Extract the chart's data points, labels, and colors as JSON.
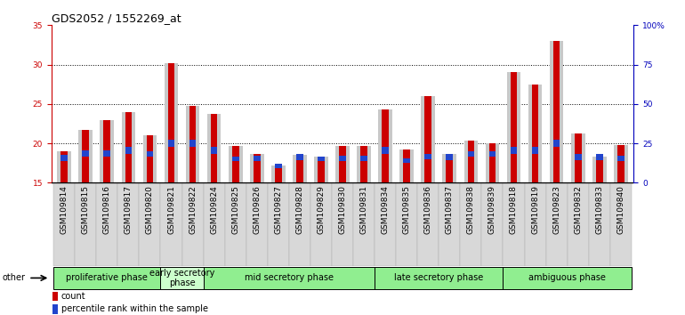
{
  "title": "GDS2052 / 1552269_at",
  "samples": [
    "GSM109814",
    "GSM109815",
    "GSM109816",
    "GSM109817",
    "GSM109820",
    "GSM109821",
    "GSM109822",
    "GSM109824",
    "GSM109825",
    "GSM109826",
    "GSM109827",
    "GSM109828",
    "GSM109829",
    "GSM109830",
    "GSM109831",
    "GSM109834",
    "GSM109835",
    "GSM109836",
    "GSM109837",
    "GSM109838",
    "GSM109839",
    "GSM109818",
    "GSM109819",
    "GSM109823",
    "GSM109832",
    "GSM109833",
    "GSM109840"
  ],
  "count_values": [
    19.0,
    21.7,
    23.0,
    24.0,
    21.0,
    30.2,
    24.7,
    23.7,
    19.7,
    18.7,
    17.2,
    18.5,
    18.3,
    19.7,
    19.7,
    24.3,
    19.2,
    26.0,
    18.7,
    20.3,
    20.0,
    29.0,
    27.5,
    33.0,
    21.2,
    18.3,
    19.8
  ],
  "percentile_bottom": [
    17.7,
    18.3,
    18.3,
    18.7,
    18.3,
    19.5,
    19.5,
    18.7,
    17.7,
    17.7,
    16.9,
    17.9,
    17.7,
    17.7,
    17.7,
    18.7,
    17.5,
    18.0,
    17.9,
    18.3,
    18.3,
    18.7,
    18.7,
    19.5,
    17.9,
    17.9,
    17.7
  ],
  "percentile_height": [
    0.8,
    0.8,
    0.8,
    0.8,
    0.7,
    1.0,
    1.0,
    0.8,
    0.6,
    0.7,
    0.5,
    0.7,
    0.6,
    0.7,
    0.7,
    0.8,
    0.6,
    0.7,
    0.7,
    0.7,
    0.7,
    0.8,
    0.8,
    1.0,
    0.7,
    0.7,
    0.7
  ],
  "ylim_left": [
    15,
    35
  ],
  "ylim_right": [
    0,
    100
  ],
  "yticks_left": [
    15,
    20,
    25,
    30,
    35
  ],
  "yticks_right": [
    0,
    25,
    50,
    75,
    100
  ],
  "ytick_labels_right": [
    "0",
    "25",
    "50",
    "75",
    "100%"
  ],
  "count_color": "#cc0000",
  "percentile_color": "#2244cc",
  "bar_bg_color": "#c8c8c8",
  "groups": [
    {
      "label": "proliferative phase",
      "start": 0,
      "end": 4,
      "color": "#90EE90"
    },
    {
      "label": "early secretory\nphase",
      "start": 5,
      "end": 6,
      "color": "#ccffcc"
    },
    {
      "label": "mid secretory phase",
      "start": 7,
      "end": 14,
      "color": "#90EE90"
    },
    {
      "label": "late secretory phase",
      "start": 15,
      "end": 20,
      "color": "#90EE90"
    },
    {
      "label": "ambiguous phase",
      "start": 21,
      "end": 26,
      "color": "#90EE90"
    }
  ],
  "other_label": "other",
  "legend_count": "count",
  "legend_percentile": "percentile rank within the sample",
  "title_fontsize": 9,
  "tick_fontsize": 6.5,
  "group_fontsize": 7,
  "axis_color_left": "#cc0000",
  "axis_color_right": "#0000bb",
  "bar_bottom": 15.0
}
